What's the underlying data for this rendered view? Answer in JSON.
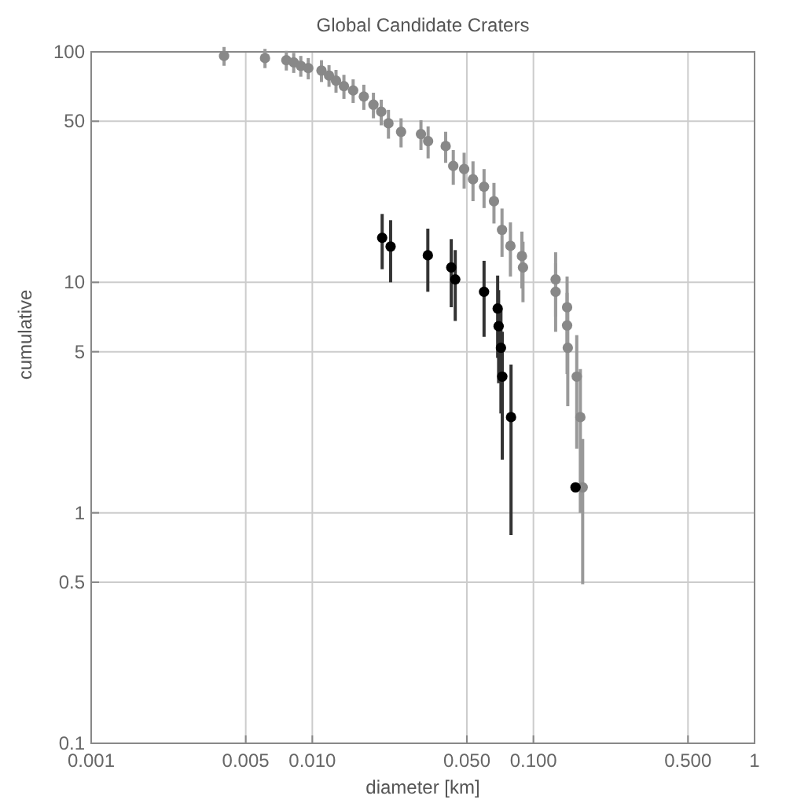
{
  "chart_data": {
    "type": "scatter",
    "title": "Global Candidate Craters",
    "xlabel": "diameter [km]",
    "ylabel": "cumulative",
    "log": "xy",
    "grid": true,
    "marker": "circle",
    "xlim": [
      0.001,
      1
    ],
    "ylim": [
      0.1,
      100
    ],
    "xticks": [
      0.001,
      0.005,
      {
        "value": 0.01,
        "label": "0.010"
      },
      {
        "value": 0.05,
        "label": "0.050"
      },
      {
        "value": 0.1,
        "label": "0.100"
      },
      {
        "value": 0.5,
        "label": "0.500"
      },
      1
    ],
    "yticks": [
      0.1,
      0.5,
      1,
      5,
      10,
      50,
      100
    ],
    "series": [
      {
        "color": "#888888",
        "x": [
          0.00399,
          0.00611,
          0.00763,
          0.00824,
          0.00887,
          0.00959,
          0.011,
          0.0119,
          0.0128,
          0.0139,
          0.0153,
          0.0171,
          0.0189,
          0.0205,
          0.0221,
          0.0252,
          0.031,
          0.0334,
          0.0401,
          0.0434,
          0.0486,
          0.0533,
          0.0598,
          0.0663,
          0.0721,
          0.0787,
          0.0887,
          0.0897,
          0.126,
          0.126,
          0.142,
          0.142,
          0.143,
          0.157,
          0.163,
          0.167
        ],
        "values": [
          96,
          94,
          92,
          90,
          87,
          85,
          83,
          79,
          75,
          71,
          68,
          64,
          59,
          55,
          49,
          45,
          44,
          41,
          39,
          32,
          31,
          28,
          26,
          22.5,
          16.9,
          14.4,
          13,
          11.6,
          10.3,
          9.1,
          7.8,
          6.5,
          5.2,
          3.9,
          2.6,
          1.29
        ],
        "errors": [
          9,
          9,
          9,
          9,
          9,
          9,
          9,
          8.5,
          8.5,
          8.5,
          8,
          8,
          7.5,
          7,
          7,
          6.5,
          6.5,
          6.5,
          6,
          5.5,
          5.5,
          5.5,
          5,
          4.5,
          4,
          3.8,
          3.6,
          3.4,
          3.2,
          3,
          2.8,
          2.5,
          2.3,
          2,
          1.6,
          0.8
        ]
      },
      {
        "color": "#000000",
        "x": [
          0.0207,
          0.0226,
          0.0333,
          0.0425,
          0.0443,
          0.0598,
          0.0689,
          0.0696,
          0.0713,
          0.0723,
          0.0792,
          0.155
        ],
        "values": [
          15.6,
          14.3,
          13.1,
          11.6,
          10.3,
          9.1,
          7.7,
          6.45,
          5.2,
          3.9,
          2.6,
          1.29
        ],
        "errors": [
          4.2,
          4.3,
          4,
          3.8,
          3.5,
          3.3,
          3,
          2.8,
          2.5,
          2.2,
          1.8,
          null
        ]
      }
    ]
  }
}
